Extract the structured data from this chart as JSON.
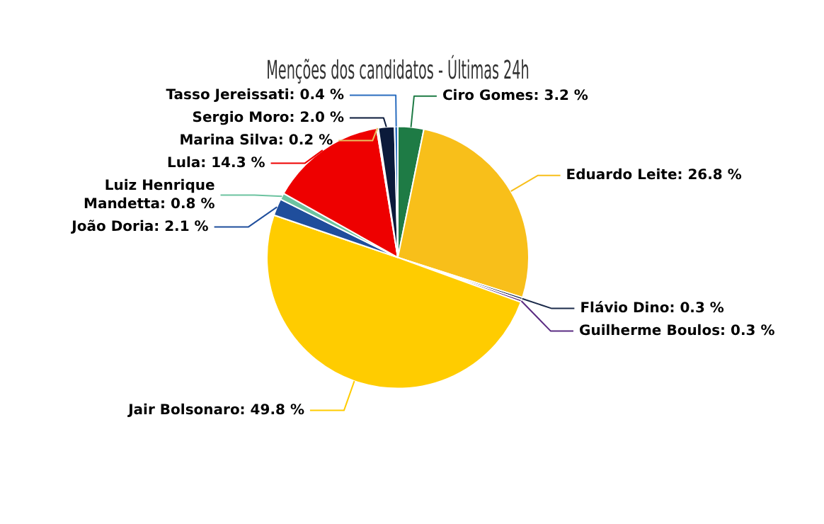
{
  "chart_data": {
    "type": "pie",
    "title": "Menções dos candidatos - Últimas 24h",
    "categories": [
      "Ciro Gomes",
      "Eduardo Leite",
      "Flávio Dino",
      "Guilherme Boulos",
      "Jair Bolsonaro",
      "João Doria",
      "Luiz Henrique Mandetta",
      "Lula",
      "Marina Silva",
      "Sergio Moro",
      "Tasso Jereissati"
    ],
    "values": [
      3.2,
      26.8,
      0.3,
      0.3,
      49.8,
      2.1,
      0.8,
      14.3,
      0.2,
      2.0,
      0.4
    ],
    "value_labels": [
      ": 3.2 %",
      ": 26.8 %",
      ": 0.3 %",
      ": 0.3 %",
      ": 49.8 %",
      ": 2.1 %",
      ": 0.8 %",
      ": 14.3 %",
      ": 0.2 %",
      ": 2.0 %",
      ": 0.4 %"
    ],
    "colors": [
      "#1e7b45",
      "#f8bf1a",
      "#1b2a4a",
      "#5b2c83",
      "#ffcc00",
      "#1f4e9c",
      "#6cc3a0",
      "#ee0000",
      "#e8c060",
      "#0b1a3a",
      "#2a6dbf"
    ],
    "legend": false
  }
}
